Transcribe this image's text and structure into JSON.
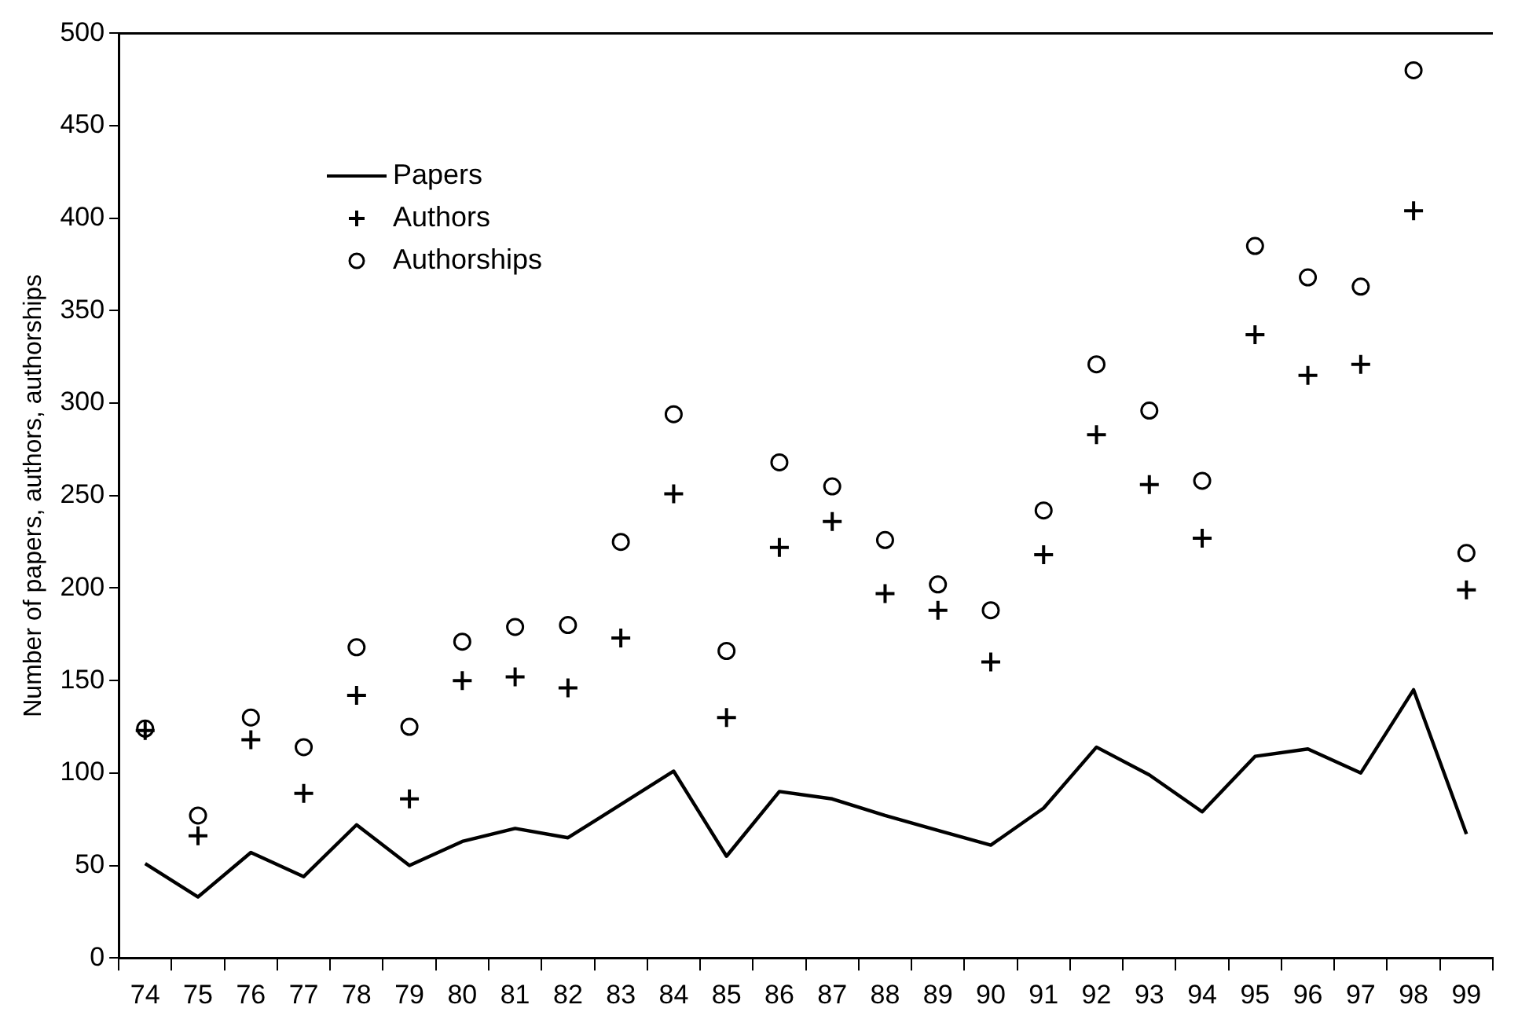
{
  "chart_data": {
    "type": "line",
    "ylabel": "Number of papers, authors, authorships",
    "categories": [
      "74",
      "75",
      "76",
      "77",
      "78",
      "79",
      "80",
      "81",
      "82",
      "83",
      "84",
      "85",
      "86",
      "87",
      "88",
      "89",
      "90",
      "91",
      "92",
      "93",
      "94",
      "95",
      "96",
      "97",
      "98",
      "99"
    ],
    "series": [
      {
        "name": "Papers",
        "color": "#000000",
        "marker": "none",
        "line_style": "solid",
        "values": [
          51,
          33,
          57,
          44,
          72,
          50,
          63,
          70,
          65,
          83,
          101,
          55,
          90,
          86,
          77,
          69,
          61,
          81,
          114,
          99,
          79,
          109,
          113,
          100,
          145,
          67
        ]
      },
      {
        "name": "Authors",
        "type": "scatter",
        "color": "#000000",
        "marker": "cross",
        "values": [
          123,
          66,
          118,
          89,
          142,
          86,
          150,
          152,
          146,
          173,
          251,
          130,
          222,
          236,
          197,
          188,
          160,
          218,
          283,
          256,
          227,
          337,
          315,
          321,
          404,
          199
        ]
      },
      {
        "name": "Authorships",
        "type": "scatter",
        "color": "#000000",
        "marker": "circle",
        "values": [
          124,
          77,
          130,
          114,
          168,
          125,
          171,
          179,
          180,
          225,
          294,
          166,
          268,
          255,
          226,
          202,
          188,
          242,
          321,
          296,
          258,
          385,
          368,
          363,
          480,
          219
        ]
      }
    ],
    "ylim": [
      0,
      500
    ],
    "yticks": [
      0,
      50,
      100,
      150,
      200,
      250,
      300,
      350,
      400,
      450,
      500
    ],
    "grid": false,
    "legend": "top left"
  }
}
